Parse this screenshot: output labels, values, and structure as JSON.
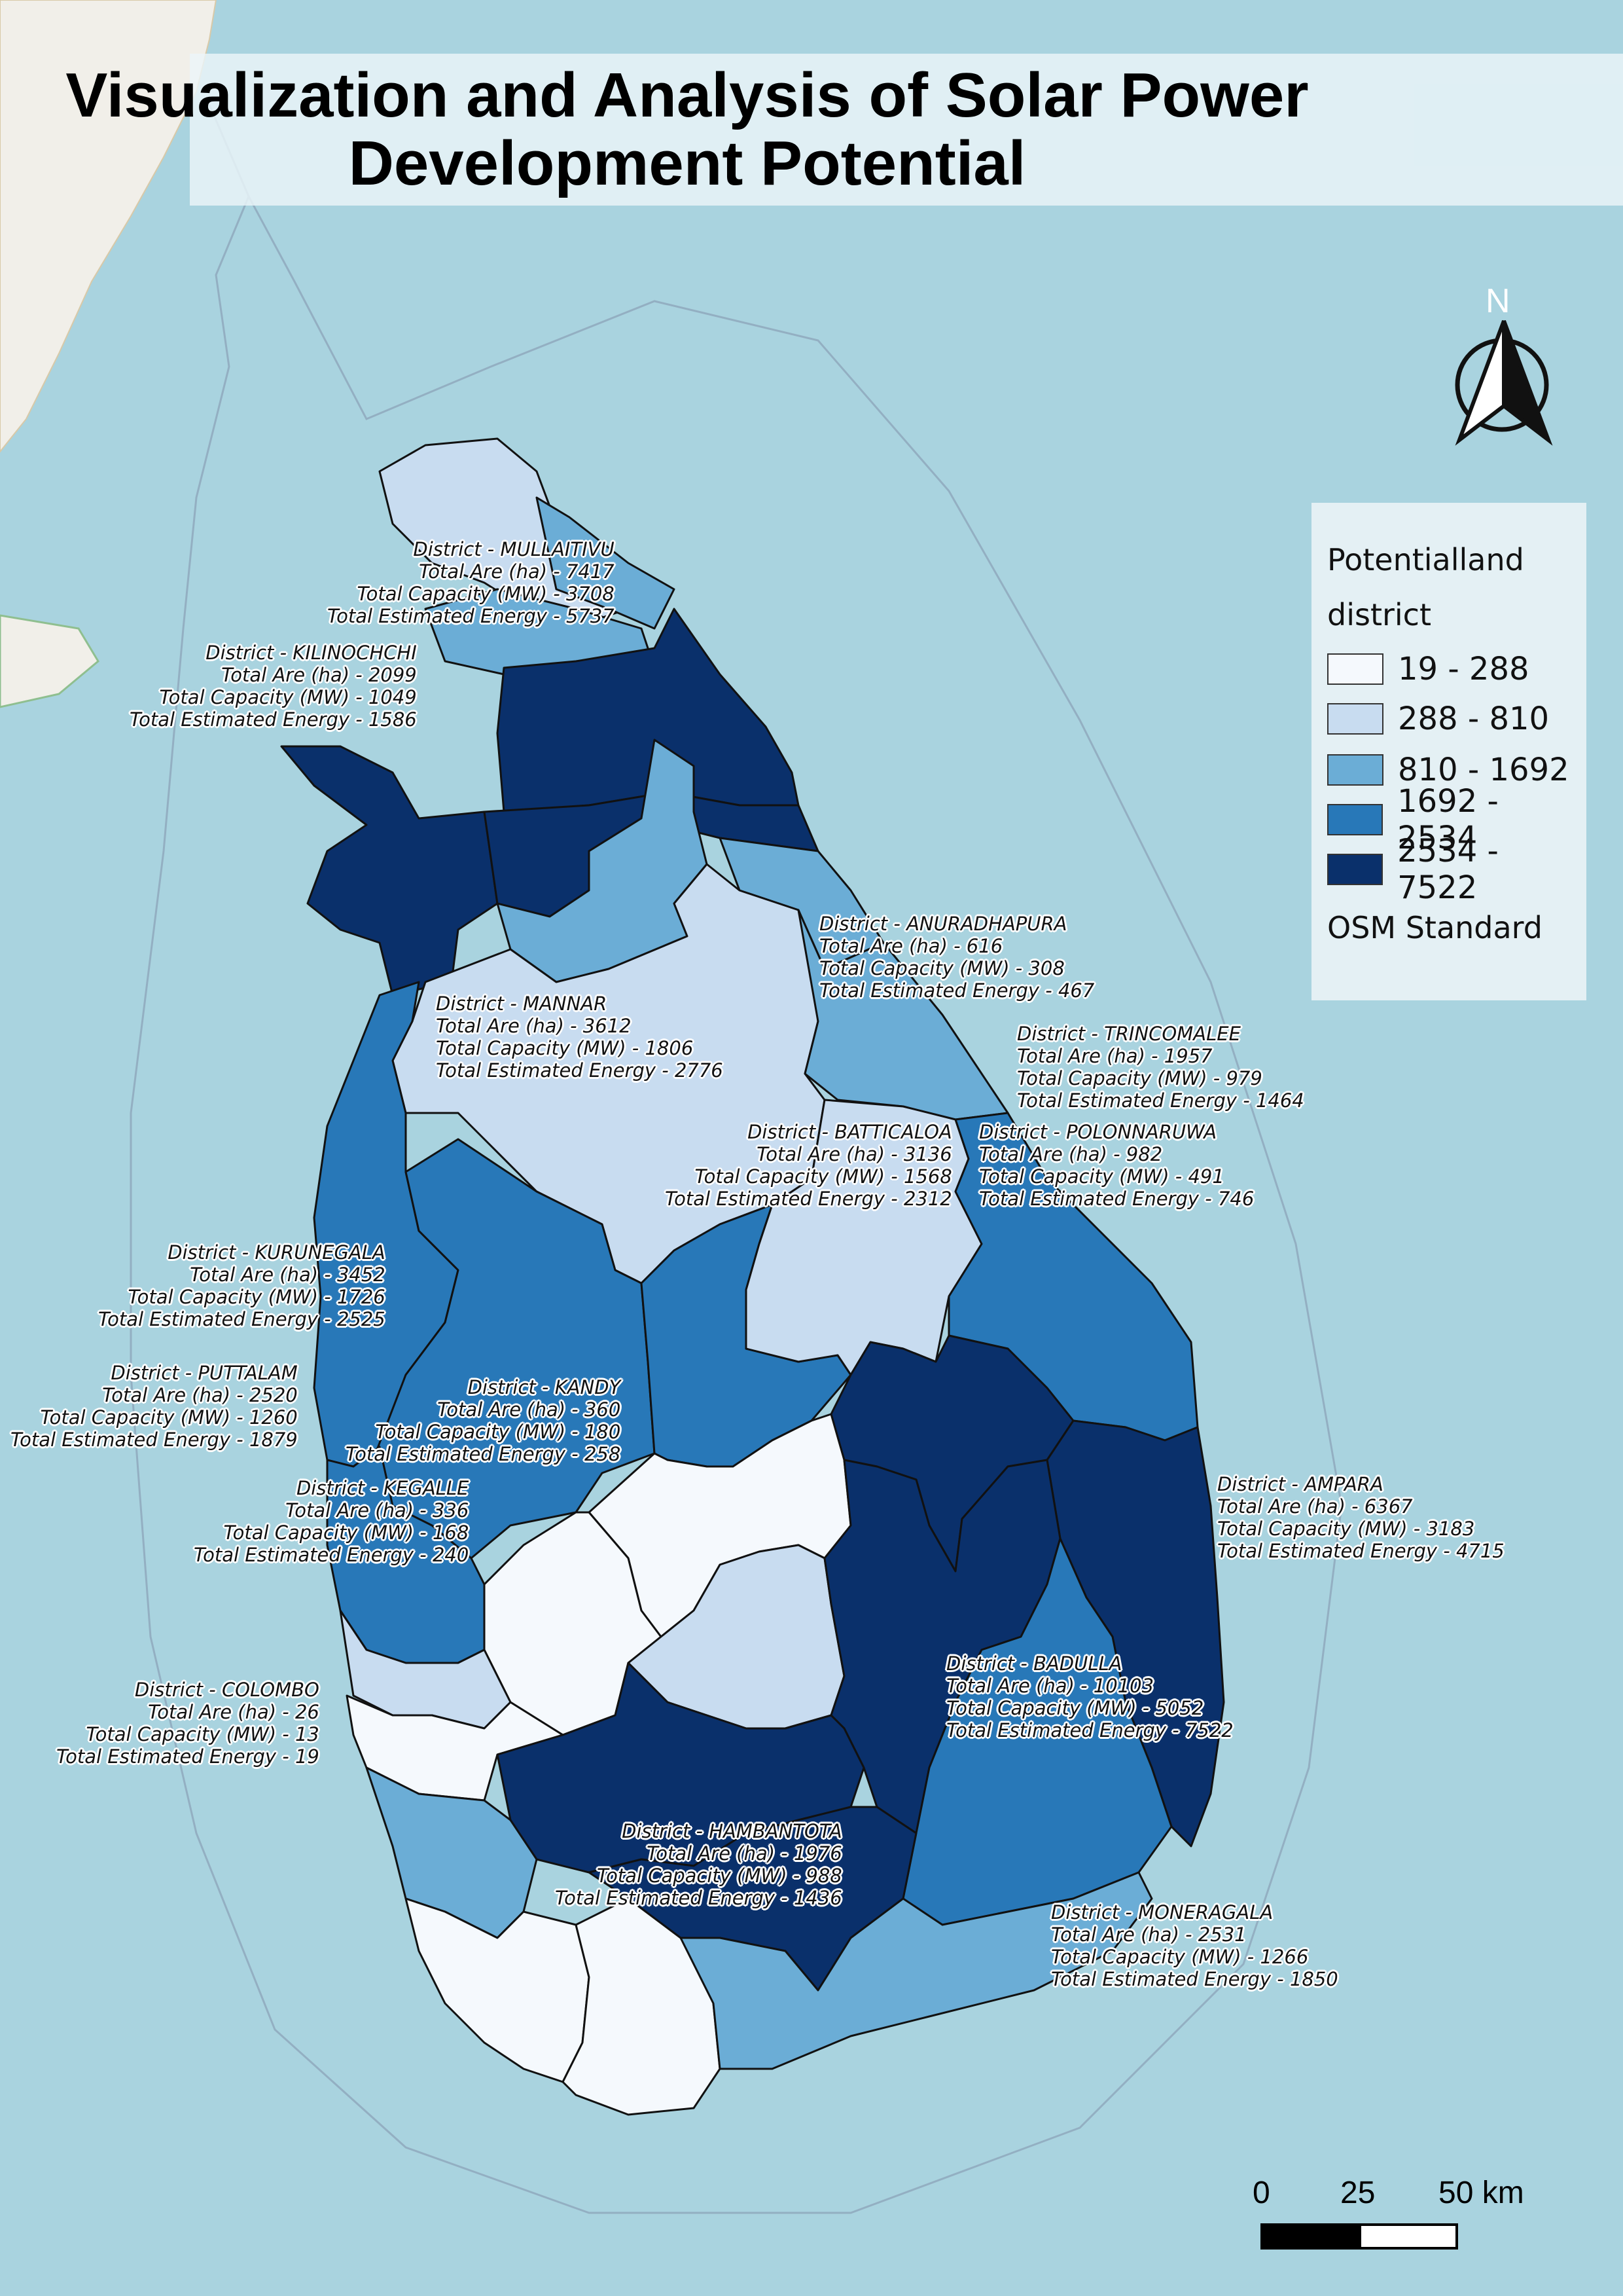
{
  "title_line1": "Visualization and Analysis of Solar Power",
  "title_line2": "Development Potential",
  "colors": {
    "sea": "#a9d3df",
    "class1": "#f5f9fd",
    "class2": "#c8dcf0",
    "class3": "#6badd6",
    "class4": "#2878b8",
    "class5": "#0a306b"
  },
  "legend": {
    "title1": "Potentialland",
    "title2": "district",
    "classes": [
      "19 - 288",
      "288 - 810",
      "810 - 1692",
      "1692 - 2534",
      "2534 - 7522"
    ],
    "basemap": "OSM Standard"
  },
  "north": "N",
  "scale": {
    "t0": "0",
    "t1": "25",
    "t2": "50 km"
  },
  "districts": {
    "mullaitivu": [
      "District - MULLAITIVU",
      "Total Are (ha) - 7417",
      "Total Capacity (MW) - 3708",
      "Total Estimated Energy - 5737"
    ],
    "kilinochchi": [
      "District - KILINOCHCHI",
      "Total Are (ha) - 2099",
      "Total Capacity (MW) - 1049",
      "Total Estimated Energy - 1586"
    ],
    "anuradhapura": [
      "District - ANURADHAPURA",
      "Total Are (ha) - 616",
      "Total Capacity (MW) - 308",
      "Total Estimated Energy - 467"
    ],
    "mannar": [
      "District - MANNAR",
      "Total Are (ha) - 3612",
      "Total Capacity (MW) - 1806",
      "Total Estimated Energy - 2776"
    ],
    "trincomalee": [
      "District - TRINCOMALEE",
      "Total Are (ha) - 1957",
      "Total Capacity (MW) - 979",
      "Total Estimated Energy - 1464"
    ],
    "batticaloa": [
      "District - BATTICALOA",
      "Total Are (ha) - 3136",
      "Total Capacity (MW) - 1568",
      "Total Estimated Energy - 2312"
    ],
    "polonnaruwa": [
      "District - POLONNARUWA",
      "Total Are (ha) - 982",
      "Total Capacity (MW) - 491",
      "Total Estimated Energy - 746"
    ],
    "kurunegala": [
      "District - KURUNEGALA",
      "Total Are (ha) - 3452",
      "Total Capacity (MW) - 1726",
      "Total Estimated Energy - 2525"
    ],
    "puttalam": [
      "District - PUTTALAM",
      "Total Are (ha) - 2520",
      "Total Capacity (MW) - 1260",
      "Total Estimated Energy - 1879"
    ],
    "kandy": [
      "District - KANDY",
      "Total Are (ha) - 360",
      "Total Capacity (MW) - 180",
      "Total Estimated Energy - 258"
    ],
    "kegalle": [
      "District - KEGALLE",
      "Total Are (ha) - 336",
      "Total Capacity (MW) - 168",
      "Total Estimated Energy - 240"
    ],
    "ampara": [
      "District - AMPARA",
      "Total Are (ha) - 6367",
      "Total Capacity (MW) - 3183",
      "Total Estimated Energy - 4715"
    ],
    "badulla": [
      "District - BADULLA",
      "Total Are (ha) - 10103",
      "Total Capacity (MW) - 5052",
      "Total Estimated Energy - 7522"
    ],
    "colombo": [
      "District - COLOMBO",
      "Total Are (ha) - 26",
      "Total Capacity (MW) - 13",
      "Total Estimated Energy - 19"
    ],
    "hambantota": [
      "District - HAMBANTOTA",
      "Total Are (ha) - 1976",
      "Total Capacity (MW) - 988",
      "Total Estimated Energy - 1436"
    ],
    "moneragala": [
      "District - MONERAGALA",
      "Total Are (ha) - 2531",
      "Total Capacity (MW) - 1266",
      "Total Estimated Energy - 1850"
    ]
  }
}
